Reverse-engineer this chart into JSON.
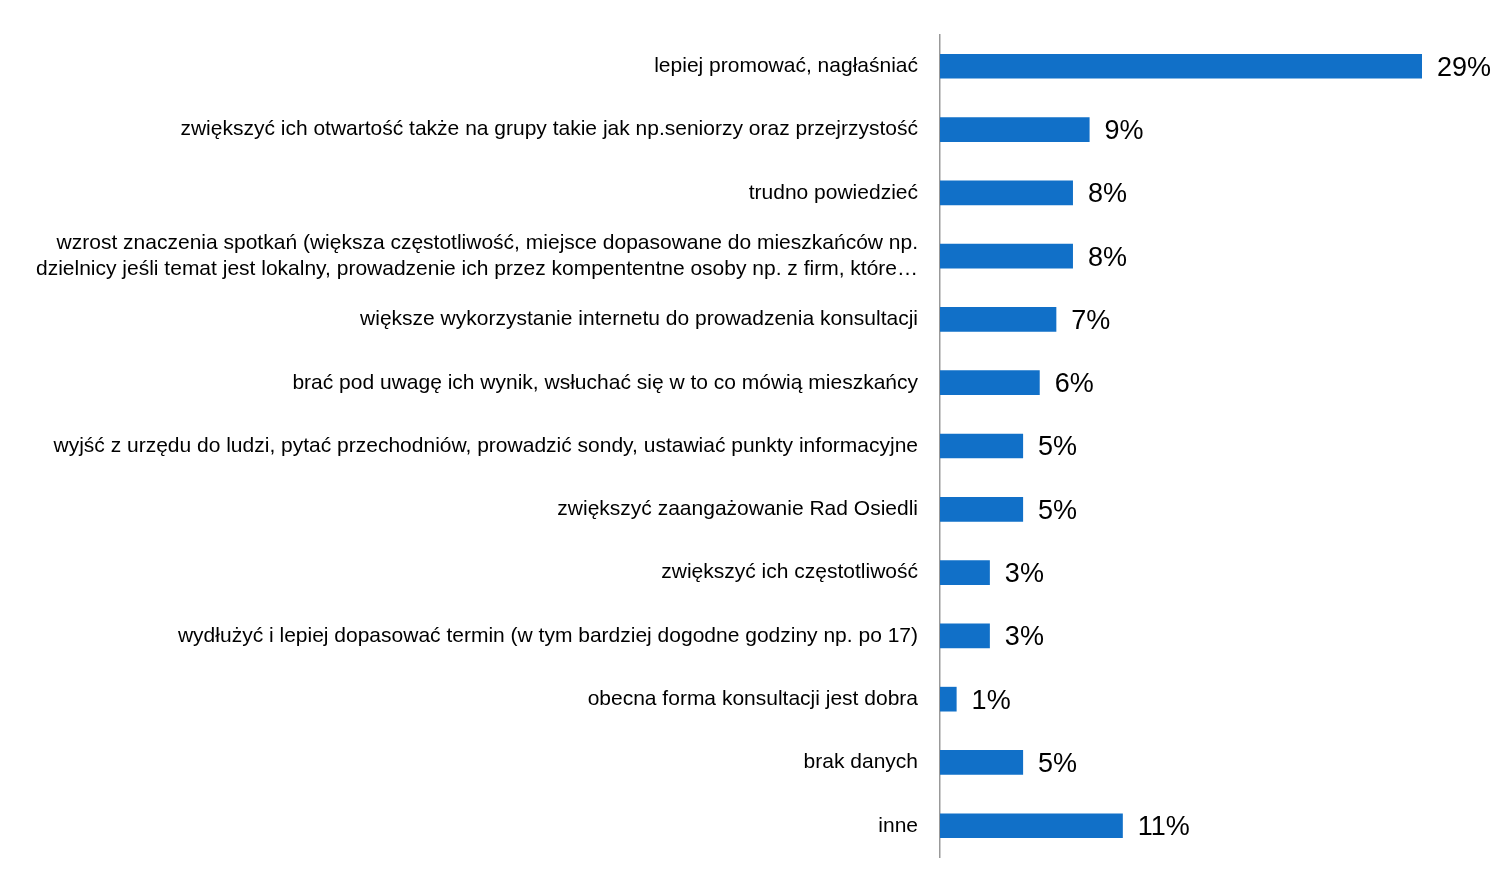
{
  "chart_data": {
    "type": "bar",
    "orientation": "horizontal",
    "categories": [
      "lepiej promować, nagłaśniać",
      "zwiększyć ich otwartość także na grupy takie jak np.seniorzy oraz przejrzystość",
      "trudno powiedzieć",
      "wzrost znaczenia spotkań (większa częstotliwość, miejsce dopasowane do mieszkańców np. dzielnicy jeśli temat jest lokalny, prowadzenie ich przez kompententne osoby np. z firm, które…",
      "większe wykorzystanie internetu do prowadzenia konsultacji",
      "brać pod uwagę ich wynik, wsłuchać się w to co mówią mieszkańcy",
      "wyjść z urzędu do ludzi, pytać przechodniów, prowadzić sondy, ustawiać punkty informacyjne",
      "zwiększyć zaangażowanie Rad Osiedli",
      "zwiększyć ich częstotliwość",
      "wydłużyć i lepiej dopasować termin (w tym bardziej dogodne godziny np. po 17)",
      "obecna forma konsultacji jest dobra",
      "brak danych",
      "inne"
    ],
    "values": [
      29,
      9,
      8,
      8,
      7,
      6,
      5,
      5,
      3,
      3,
      1,
      5,
      11
    ],
    "value_labels": [
      "29%",
      "9%",
      "8%",
      "8%",
      "7%",
      "6%",
      "5%",
      "5%",
      "3%",
      "3%",
      "1%",
      "5%",
      "11%"
    ],
    "color": "#1170c8",
    "grid": false,
    "legend": false
  }
}
